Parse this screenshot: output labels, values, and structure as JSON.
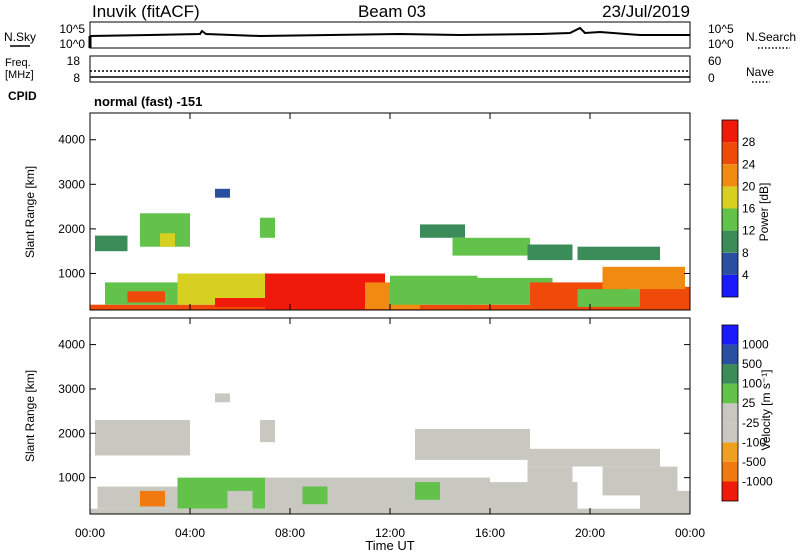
{
  "header": {
    "station": "Inuvik (fitACF)",
    "beam": "Beam 03",
    "date": "23/Jul/2019"
  },
  "ancillary": {
    "nsky_label": "N.Sky",
    "nsearch_label": "N.Search",
    "freq_label_1": "Freq.",
    "freq_label_2": "[MHz]",
    "nave_label": "Nave",
    "cpid_label": "CPID",
    "cpid_value": "normal (fast) -151",
    "noise_left_ticks": [
      "10^5",
      "10^0"
    ],
    "noise_right_ticks": [
      "10^5",
      "10^0"
    ],
    "freq_left_ticks": [
      "18",
      "8"
    ],
    "freq_right_ticks": [
      "60",
      "0"
    ]
  },
  "colors": {
    "power": [
      "#1a1aff",
      "#2a4fa0",
      "#3c8c5a",
      "#62c24a",
      "#d8d020",
      "#f08a10",
      "#f04a0a",
      "#f01a0a"
    ],
    "velocity": [
      "#ee1a0a",
      "#f07a10",
      "#f0a020",
      "#c8c8c0",
      "#c8c8c0",
      "#62c24a",
      "#3c8c5a",
      "#2a4fa0",
      "#1a1aff"
    ]
  },
  "chart_data": [
    {
      "type": "heatmap",
      "title": "",
      "xlabel": "",
      "ylabel": "Slant Range [km]",
      "x_ticks": [
        "00:00",
        "04:00",
        "08:00",
        "12:00",
        "16:00",
        "20:00",
        "00:00"
      ],
      "y_ticks": [
        "1000",
        "2000",
        "3000",
        "4000"
      ],
      "y_values": [
        1000,
        2000,
        3000,
        4000
      ],
      "ylim": [
        180,
        4600
      ],
      "xlim_hours": [
        0,
        24
      ],
      "colorbar": {
        "label": "Power [dB]",
        "ticks": [
          "4",
          "8",
          "12",
          "16",
          "20",
          "24",
          "28"
        ],
        "range": [
          0,
          32
        ]
      },
      "regions": [
        {
          "t0": 0.0,
          "t1": 24.0,
          "r0": 180,
          "r1": 300,
          "value": 26
        },
        {
          "t0": 0.6,
          "t1": 3.8,
          "r0": 300,
          "r1": 800,
          "value": 14
        },
        {
          "t0": 1.5,
          "t1": 3.0,
          "r0": 350,
          "r1": 600,
          "value": 24
        },
        {
          "t0": 3.5,
          "t1": 7.0,
          "r0": 300,
          "r1": 1000,
          "value": 18
        },
        {
          "t0": 5.0,
          "t1": 7.0,
          "r0": 250,
          "r1": 450,
          "value": 28
        },
        {
          "t0": 7.0,
          "t1": 11.8,
          "r0": 200,
          "r1": 1000,
          "value": 30
        },
        {
          "t0": 11.0,
          "t1": 13.2,
          "r0": 200,
          "r1": 800,
          "value": 22
        },
        {
          "t0": 12.0,
          "t1": 15.5,
          "r0": 300,
          "r1": 950,
          "value": 14
        },
        {
          "t0": 15.0,
          "t1": 18.5,
          "r0": 300,
          "r1": 900,
          "value": 15
        },
        {
          "t0": 17.6,
          "t1": 21.5,
          "r0": 200,
          "r1": 800,
          "value": 24
        },
        {
          "t0": 19.5,
          "t1": 22.0,
          "r0": 250,
          "r1": 650,
          "value": 13
        },
        {
          "t0": 22.0,
          "t1": 24.0,
          "r0": 250,
          "r1": 700,
          "value": 26
        },
        {
          "t0": 20.5,
          "t1": 23.8,
          "r0": 650,
          "r1": 1150,
          "value": 22
        },
        {
          "t0": 0.2,
          "t1": 1.5,
          "r0": 1500,
          "r1": 1850,
          "value": 8
        },
        {
          "t0": 2.0,
          "t1": 4.0,
          "r0": 1600,
          "r1": 2350,
          "value": 12
        },
        {
          "t0": 2.8,
          "t1": 3.4,
          "r0": 1600,
          "r1": 1900,
          "value": 16
        },
        {
          "t0": 6.8,
          "t1": 7.4,
          "r0": 1800,
          "r1": 2250,
          "value": 15
        },
        {
          "t0": 13.2,
          "t1": 15.0,
          "r0": 1800,
          "r1": 2100,
          "value": 9
        },
        {
          "t0": 14.5,
          "t1": 17.6,
          "r0": 1400,
          "r1": 1800,
          "value": 12
        },
        {
          "t0": 17.5,
          "t1": 19.3,
          "r0": 1300,
          "r1": 1650,
          "value": 10
        },
        {
          "t0": 19.5,
          "t1": 22.8,
          "r0": 1300,
          "r1": 1600,
          "value": 8
        },
        {
          "t0": 5.0,
          "t1": 5.6,
          "r0": 2700,
          "r1": 2900,
          "value": 6
        }
      ]
    },
    {
      "type": "heatmap",
      "title": "",
      "xlabel": "Time UT",
      "ylabel": "Slant Range [km]",
      "x_ticks": [
        "00:00",
        "04:00",
        "08:00",
        "12:00",
        "16:00",
        "20:00",
        "00:00"
      ],
      "y_ticks": [
        "1000",
        "2000",
        "3000",
        "4000"
      ],
      "y_values": [
        1000,
        2000,
        3000,
        4000
      ],
      "ylim": [
        180,
        4600
      ],
      "xlim_hours": [
        0,
        24
      ],
      "colorbar": {
        "label": "Velocity [m s⁻¹]",
        "ticks": [
          "1000",
          "500",
          "100",
          "25",
          "-25",
          "-100",
          "-500",
          "-1000"
        ],
        "range": [
          -1250,
          1250
        ]
      },
      "regions": [
        {
          "t0": 0.0,
          "t1": 24.0,
          "r0": 180,
          "r1": 300,
          "value": 0
        },
        {
          "t0": 0.3,
          "t1": 3.5,
          "r0": 300,
          "r1": 800,
          "value": -300
        },
        {
          "t0": 2.0,
          "t1": 3.0,
          "r0": 350,
          "r1": 700,
          "value": -700
        },
        {
          "t0": 3.5,
          "t1": 7.0,
          "r0": 300,
          "r1": 1000,
          "value": 300
        },
        {
          "t0": 5.5,
          "t1": 6.5,
          "r0": 300,
          "r1": 700,
          "value": 0
        },
        {
          "t0": 7.0,
          "t1": 12.0,
          "r0": 200,
          "r1": 1000,
          "value": 0
        },
        {
          "t0": 8.5,
          "t1": 9.5,
          "r0": 400,
          "r1": 800,
          "value": 300
        },
        {
          "t0": 12.0,
          "t1": 16.0,
          "r0": 250,
          "r1": 1000,
          "value": 0
        },
        {
          "t0": 13.0,
          "t1": 14.0,
          "r0": 500,
          "r1": 900,
          "value": 300
        },
        {
          "t0": 16.0,
          "t1": 19.5,
          "r0": 200,
          "r1": 900,
          "value": 0
        },
        {
          "t0": 17.5,
          "t1": 19.3,
          "r0": 800,
          "r1": 1250,
          "value": -300
        },
        {
          "t0": 20.5,
          "t1": 23.5,
          "r0": 600,
          "r1": 1250,
          "value": -300
        },
        {
          "t0": 22.0,
          "t1": 24.0,
          "r0": 250,
          "r1": 700,
          "value": -200
        },
        {
          "t0": 0.2,
          "t1": 4.0,
          "r0": 1500,
          "r1": 2300,
          "value": 0
        },
        {
          "t0": 6.8,
          "t1": 7.4,
          "r0": 1800,
          "r1": 2300,
          "value": 0
        },
        {
          "t0": 13.0,
          "t1": 17.6,
          "r0": 1400,
          "r1": 2100,
          "value": 0
        },
        {
          "t0": 17.5,
          "t1": 22.8,
          "r0": 1250,
          "r1": 1650,
          "value": 0
        },
        {
          "t0": 5.0,
          "t1": 5.6,
          "r0": 2700,
          "r1": 2900,
          "value": 0
        }
      ]
    }
  ]
}
